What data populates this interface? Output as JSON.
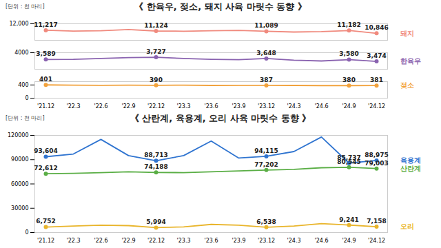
{
  "chart_data": [
    {
      "type": "line",
      "title": "《 한육우, 젖소, 돼지 사육 마릿수 동향 》",
      "subtitle": "[단위 : 천 마리]",
      "x": [
        "'21.12",
        "'22.3",
        "'22.6",
        "'22.9",
        "'22.12",
        "'23.3",
        "'23.6",
        "'23.9",
        "'23.12",
        "'24.3",
        "'24.6",
        "'24.9",
        "'24.12"
      ],
      "series": [
        {
          "name": "돼지",
          "color": "#f08a7e",
          "marker": "circle",
          "values": [
            11217,
            11120,
            11150,
            11300,
            11124,
            11100,
            11150,
            11200,
            11089,
            11000,
            11050,
            11182,
            10846
          ],
          "value_labels": [
            "11,217",
            null,
            null,
            null,
            "11,124",
            null,
            null,
            null,
            "11,089",
            null,
            null,
            "11,182",
            "10,846"
          ]
        }
      ],
      "ylim": [
        10000,
        12000
      ],
      "yticks": [
        {
          "value": 12000,
          "label": "12,000"
        }
      ],
      "grid": false,
      "data_labels": true,
      "tick_labels": "y"
    },
    {
      "type": "line",
      "x": [
        "'21.12",
        "'22.3",
        "'22.6",
        "'22.9",
        "'22.12",
        "'23.3",
        "'23.6",
        "'23.9",
        "'23.12",
        "'24.3",
        "'24.6",
        "'24.9",
        "'24.12"
      ],
      "series": [
        {
          "name": "한육우",
          "color": "#8a63b0",
          "marker": "circle",
          "values": [
            3589,
            3600,
            3650,
            3700,
            3727,
            3650,
            3600,
            3580,
            3648,
            3550,
            3500,
            3580,
            3474
          ],
          "value_labels": [
            "3,589",
            null,
            null,
            null,
            "3,727",
            null,
            null,
            null,
            "3,648",
            null,
            null,
            "3,580",
            "3,474"
          ]
        }
      ],
      "ylim": [
        3000,
        4000
      ],
      "yticks": [
        4000
      ],
      "grid": false,
      "data_labels": true,
      "tick_labels": "y"
    },
    {
      "type": "line",
      "x": [
        "'21.12",
        "'22.3",
        "'22.6",
        "'22.9",
        "'22.12",
        "'23.3",
        "'23.6",
        "'23.9",
        "'23.12",
        "'24.3",
        "'24.6",
        "'24.9",
        "'24.12"
      ],
      "series": [
        {
          "name": "젖소",
          "color": "#f2a23c",
          "marker": "circle",
          "values": [
            401,
            395,
            390,
            395,
            390,
            395,
            385,
            390,
            387,
            385,
            380,
            380,
            381
          ],
          "value_labels": [
            "401",
            null,
            null,
            null,
            "390",
            null,
            null,
            null,
            "387",
            null,
            null,
            "380",
            "381"
          ]
        }
      ],
      "ylim": [
        0,
        500
      ],
      "yticks": [
        0,
        400
      ],
      "grid": false,
      "data_labels": true
    },
    {
      "type": "line",
      "title": "《 산란계, 육용계, 오리 사육 마릿수 동향 》",
      "subtitle": "[단위 : 천 마리]",
      "x": [
        "'21.12",
        "'22.3",
        "'22.6",
        "'22.9",
        "'22.12",
        "'23.3",
        "'23.6",
        "'23.9",
        "'23.12",
        "'24.3",
        "'24.6",
        "'24.9",
        "'24.12"
      ],
      "series": [
        {
          "name": "육용계",
          "color": "#2f74d0",
          "marker": "circle",
          "values": [
            93604,
            97000,
            115000,
            95000,
            88713,
            95000,
            113000,
            92000,
            94115,
            100000,
            118000,
            85737,
            88975
          ],
          "value_labels": [
            "93,604",
            null,
            null,
            null,
            "88,713",
            null,
            null,
            null,
            "94,115",
            null,
            null,
            "85,737",
            "88,975"
          ]
        },
        {
          "name": "산란계",
          "color": "#5aae45",
          "marker": "circle",
          "values": [
            72612,
            73000,
            74000,
            75000,
            74188,
            74000,
            75000,
            76000,
            77202,
            78000,
            80000,
            80545,
            79003
          ],
          "value_labels": [
            "72,612",
            null,
            null,
            null,
            "74,188",
            null,
            null,
            null,
            "77,202",
            null,
            null,
            "80,545",
            "79,003"
          ]
        },
        {
          "name": "오리",
          "color": "#e9b52c",
          "marker": "circle",
          "values": [
            6752,
            8000,
            9000,
            8500,
            5994,
            7000,
            10000,
            9000,
            6538,
            8000,
            11000,
            9241,
            7158
          ],
          "value_labels": [
            "6,752",
            null,
            null,
            null,
            "5,994",
            null,
            null,
            null,
            "6,538",
            null,
            null,
            "9,241",
            "7,158"
          ]
        }
      ],
      "ylim": [
        0,
        120000
      ],
      "yticks": [
        0,
        30000,
        60000,
        90000,
        120000
      ],
      "grid": false,
      "data_labels": true
    }
  ]
}
